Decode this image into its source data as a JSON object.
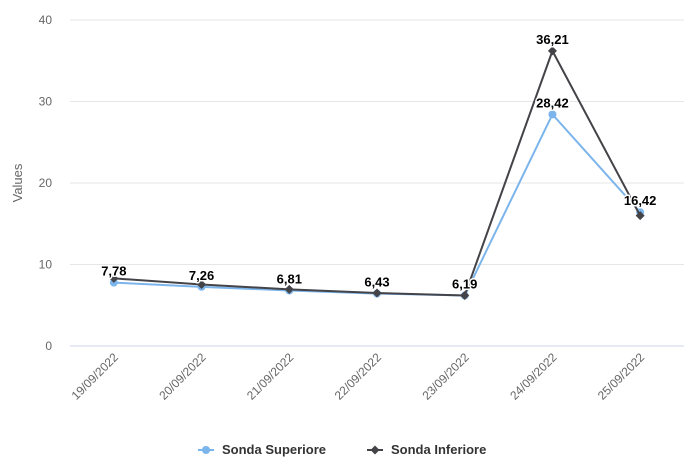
{
  "chart_data": {
    "type": "line",
    "title": "",
    "xlabel": "",
    "ylabel": "Values",
    "categories": [
      "19/09/2022",
      "20/09/2022",
      "21/09/2022",
      "22/09/2022",
      "23/09/2022",
      "24/09/2022",
      "25/09/2022"
    ],
    "ylim": [
      0,
      40
    ],
    "yticks": [
      "0",
      "10",
      "20",
      "30",
      "40"
    ],
    "grid": true,
    "legend_position": "bottom",
    "series": [
      {
        "name": "Sonda Superiore",
        "values": [
          7.78,
          7.26,
          6.81,
          6.43,
          6.19,
          28.42,
          16.42
        ],
        "color": "#7cb5ec",
        "marker": "circle"
      },
      {
        "name": "Sonda Inferiore",
        "values": [
          8.3,
          7.55,
          6.95,
          6.5,
          6.2,
          36.21,
          16.0
        ],
        "color": "#434348",
        "marker": "diamond"
      }
    ],
    "data_labels": [
      {
        "category_index": 0,
        "text": "7,78",
        "value": 7.78
      },
      {
        "category_index": 1,
        "text": "7,26",
        "value": 7.26
      },
      {
        "category_index": 2,
        "text": "6,81",
        "value": 6.81
      },
      {
        "category_index": 3,
        "text": "6,43",
        "value": 6.43
      },
      {
        "category_index": 4,
        "text": "6,19",
        "value": 6.19
      },
      {
        "category_index": 5,
        "text": "36,21",
        "value": 36.21
      },
      {
        "category_index": 5,
        "text": "28,42",
        "value": 28.42
      },
      {
        "category_index": 6,
        "text": "16,42",
        "value": 16.42
      }
    ]
  }
}
